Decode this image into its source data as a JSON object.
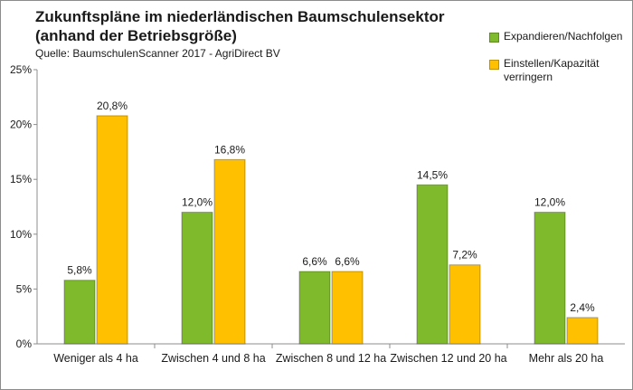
{
  "chart_data": {
    "type": "bar",
    "title_line1": "Zukunftspläne im niederländischen Baumschulensektor",
    "title_line2": "(anhand der Betriebsgröße)",
    "subtitle": "Quelle: BaumschulenScanner 2017 - AgriDirect BV",
    "categories": [
      "Weniger als 4 ha",
      "Zwischen 4 und 8 ha",
      "Zwischen 8 und 12 ha",
      "Zwischen 12 und 20 ha",
      "Mehr als 20 ha"
    ],
    "series": [
      {
        "name": "Expandieren/Nachfolgen",
        "color": "#7fba2c",
        "values": [
          5.8,
          12.0,
          6.6,
          14.5,
          12.0
        ],
        "labels": [
          "5,8%",
          "12,0%",
          "6,6%",
          "14,5%",
          "12,0%"
        ]
      },
      {
        "name": "Einstellen/Kapazität verringern",
        "color": "#ffc000",
        "values": [
          20.8,
          16.8,
          6.6,
          7.2,
          2.4
        ],
        "labels": [
          "20,8%",
          "16,8%",
          "6,6%",
          "7,2%",
          "2,4%"
        ]
      }
    ],
    "ylim": [
      0,
      25
    ],
    "yticks": [
      0,
      5,
      10,
      15,
      20,
      25
    ],
    "ytick_labels": [
      "0%",
      "5%",
      "10%",
      "15%",
      "20%",
      "25%"
    ],
    "legend_position": "top-right",
    "grid": false
  }
}
